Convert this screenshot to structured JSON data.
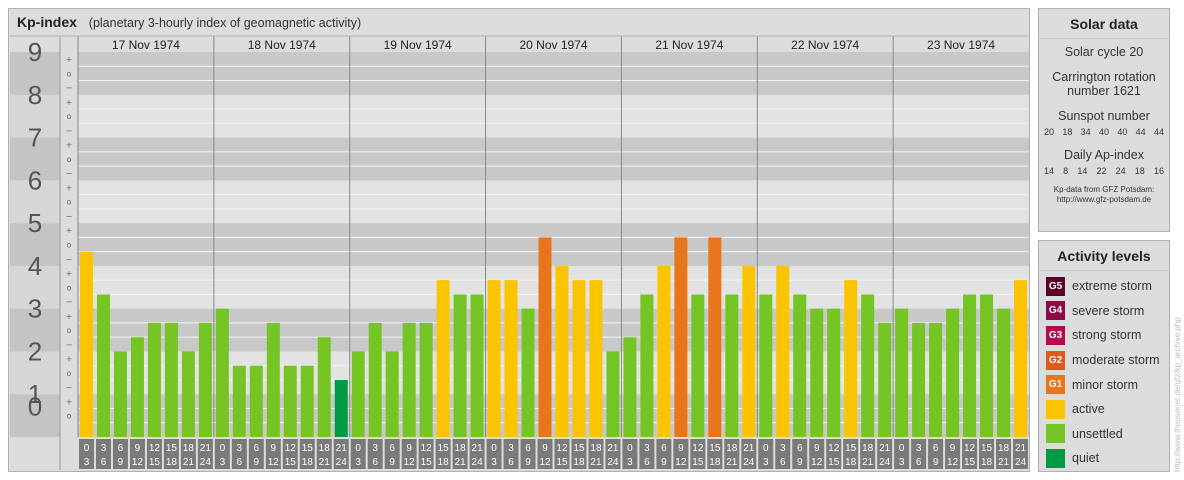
{
  "header": {
    "title": "Kp-index",
    "subtitle": "(planetary 3-hourly index of geomagnetic activity)"
  },
  "chart_data": {
    "type": "bar",
    "ylim": [
      0,
      9
    ],
    "y_ticks": [
      "0",
      "1",
      "2",
      "3",
      "4",
      "5",
      "6",
      "7",
      "8",
      "9"
    ],
    "third_marks": [
      "+",
      "o",
      "−"
    ],
    "days": [
      "17 Nov 1974",
      "18 Nov 1974",
      "19 Nov 1974",
      "20 Nov 1974",
      "21 Nov 1974",
      "22 Nov 1974",
      "23 Nov 1974"
    ],
    "hour_labels_top": [
      "0",
      "3",
      "6",
      "9",
      "12",
      "15",
      "18",
      "21"
    ],
    "hour_labels_bottom": [
      "3",
      "6",
      "9",
      "12",
      "15",
      "18",
      "21",
      "24"
    ],
    "values": [
      [
        4.333,
        3.333,
        2.0,
        2.333,
        2.667,
        2.667,
        2.0,
        2.667
      ],
      [
        3.0,
        1.667,
        1.667,
        2.667,
        1.667,
        1.667,
        2.333,
        1.333
      ],
      [
        2.0,
        2.667,
        2.0,
        2.667,
        2.667,
        3.667,
        3.333,
        3.333
      ],
      [
        3.667,
        3.667,
        3.0,
        4.667,
        4.0,
        3.667,
        3.667,
        2.0
      ],
      [
        2.333,
        3.333,
        4.0,
        4.667,
        3.333,
        4.667,
        3.333,
        4.0
      ],
      [
        3.333,
        4.0,
        3.333,
        3.0,
        3.0,
        3.667,
        3.333,
        2.667
      ],
      [
        3.0,
        2.667,
        2.667,
        3.0,
        3.333,
        3.333,
        3.0,
        3.667
      ]
    ],
    "colors": {
      "quiet": "#009a44",
      "unsettled": "#74c424",
      "active": "#fac400",
      "minor_storm": "#e8741c",
      "moderate_storm": "#dc5a1c",
      "strong_storm": "#b40a50",
      "severe_storm": "#8c0a46",
      "extreme_storm": "#5c0028"
    }
  },
  "solar": {
    "title": "Solar data",
    "cycle": "Solar cycle 20",
    "carrington_1": "Carrington rotation",
    "carrington_2": "number 1621",
    "sunspot_title": "Sunspot number",
    "sunspot_values": [
      "20",
      "18",
      "34",
      "40",
      "40",
      "44",
      "44"
    ],
    "ap_title": "Daily Ap-index",
    "ap_values": [
      "14",
      "8",
      "14",
      "22",
      "24",
      "18",
      "16"
    ],
    "credit_1": "Kp-data from GFZ Potsdam:",
    "credit_2": "http://www.gfz-potsdam.de"
  },
  "activity": {
    "title": "Activity levels",
    "items": [
      {
        "code": "G5",
        "label": "extreme storm",
        "color": "#5c0028"
      },
      {
        "code": "G4",
        "label": "severe storm",
        "color": "#8c0a46"
      },
      {
        "code": "G3",
        "label": "strong storm",
        "color": "#b40a50"
      },
      {
        "code": "G2",
        "label": "moderate storm",
        "color": "#dc5a1c"
      },
      {
        "code": "G1",
        "label": "minor storm",
        "color": "#e8741c"
      },
      {
        "code": "",
        "label": "active",
        "color": "#fac400"
      },
      {
        "code": "",
        "label": "unsettled",
        "color": "#74c424"
      },
      {
        "code": "",
        "label": "quiet",
        "color": "#009a44"
      }
    ]
  },
  "watermark": "http://www.theusenet.de/gfz/kp_archive.php"
}
